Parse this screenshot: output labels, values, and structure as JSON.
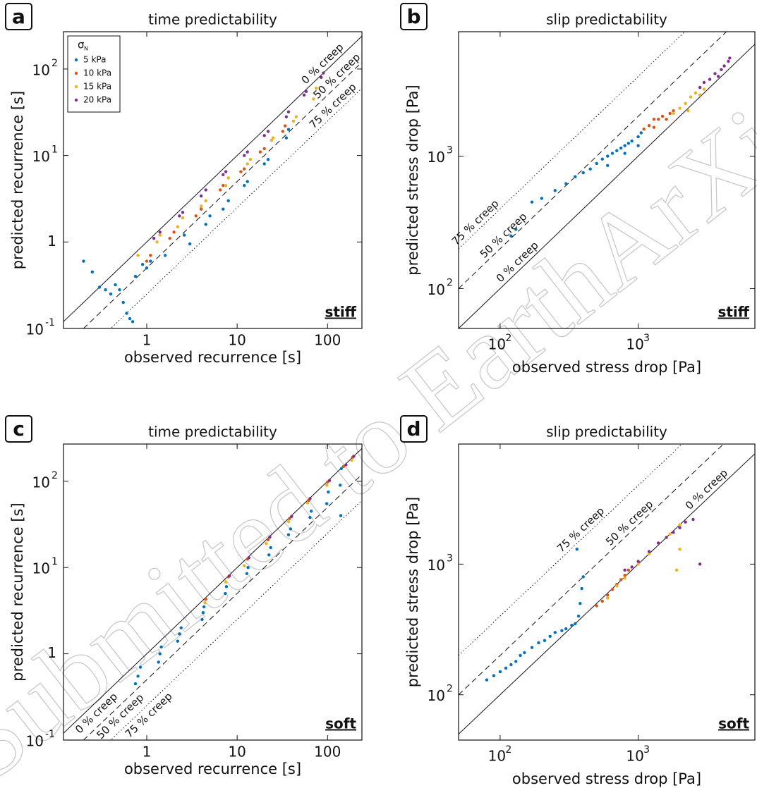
{
  "watermark": "Submitted to EarthArXiv",
  "chart_data": [
    {
      "type": "scatter",
      "panel_label": "a",
      "title": "time predictability",
      "x_label": "observed recurrence [s]",
      "y_label": "predicted recurrence [s]",
      "condition": "stiff",
      "log_x": true,
      "log_y": true,
      "xlim": [
        0.12,
        240
      ],
      "ylim": [
        0.1,
        270
      ],
      "xticks": [
        1,
        10,
        100
      ],
      "yticks": [
        {
          "value": 0.1,
          "label": "10",
          "exp": "-1"
        },
        1,
        {
          "value": 10,
          "label": "10",
          "exp": "1"
        },
        {
          "value": 100,
          "label": "10",
          "exp": "2"
        }
      ],
      "legend": "upper left",
      "legend_title": "σ",
      "legend_title_sub": "N",
      "creep_lines": [
        {
          "label": "0 % creep",
          "factor": 1,
          "style": "solid"
        },
        {
          "label": "50 % creep",
          "factor": 0.5,
          "style": "dashed"
        },
        {
          "label": "75 % creep",
          "factor": 0.25,
          "style": "dotted"
        }
      ],
      "series": [
        {
          "name": "5 kPa",
          "color": "#0072bd",
          "x": [
            0.2,
            0.25,
            0.3,
            0.35,
            0.4,
            0.45,
            0.5,
            0.55,
            0.6,
            0.65,
            0.7,
            0.75,
            0.9,
            1.0,
            1.1,
            1.6,
            2.6,
            3.0,
            4.5,
            5,
            7,
            8,
            12,
            13,
            20,
            22,
            35,
            37
          ],
          "y": [
            0.6,
            0.45,
            0.3,
            0.28,
            0.25,
            0.32,
            0.28,
            0.2,
            0.15,
            0.13,
            0.12,
            0.4,
            0.55,
            0.5,
            0.6,
            0.7,
            1.2,
            0.95,
            1.6,
            2.0,
            2.4,
            3,
            4.5,
            5,
            8,
            9,
            16,
            20
          ]
        },
        {
          "name": "10 kPa",
          "color": "#d95319",
          "x": [
            1.0,
            1.1,
            1.8,
            2.0,
            3.5,
            4,
            6.5,
            7,
            11,
            12,
            18,
            20,
            32,
            34
          ],
          "y": [
            0.6,
            0.7,
            1.1,
            1.3,
            2.0,
            2.4,
            4,
            4.5,
            6.5,
            7,
            11,
            12,
            19,
            22
          ]
        },
        {
          "name": "15 kPa",
          "color": "#edb120",
          "x": [
            0.8,
            1.3,
            1.4,
            2.2,
            2.5,
            4,
            4.5,
            7.5,
            8,
            13,
            14,
            24,
            25,
            42,
            45,
            70,
            75
          ],
          "y": [
            0.7,
            1.0,
            1.2,
            1.5,
            1.9,
            2.6,
            3,
            4.5,
            5.5,
            8,
            9,
            15,
            16,
            25,
            28,
            45,
            60
          ]
        },
        {
          "name": "20 kPa",
          "color": "#7e2f8e",
          "x": [
            1.2,
            1.4,
            2.3,
            2.5,
            4,
            4.5,
            7,
            7.5,
            12,
            13,
            20,
            22,
            35,
            37,
            55,
            58,
            85,
            90
          ],
          "y": [
            1.1,
            1.3,
            2,
            2.2,
            3.4,
            4,
            6,
            6.5,
            10,
            11,
            17,
            19,
            28,
            32,
            50,
            55,
            80,
            90
          ]
        }
      ]
    },
    {
      "type": "scatter",
      "panel_label": "b",
      "title": "slip predictability",
      "x_label": "observed stress drop [Pa]",
      "y_label": "predicted stress drop [Pa]",
      "condition": "stiff",
      "log_x": true,
      "log_y": true,
      "xlim": [
        50,
        7000
      ],
      "ylim": [
        50,
        8700
      ],
      "xticks": [
        {
          "value": 100,
          "label": "10",
          "exp": "2"
        },
        {
          "value": 1000,
          "label": "10",
          "exp": "3"
        }
      ],
      "yticks": [
        {
          "value": 100,
          "label": "10",
          "exp": "2"
        },
        {
          "value": 1000,
          "label": "10",
          "exp": "3"
        }
      ],
      "creep_lines": [
        {
          "label": "0 % creep",
          "factor": 1,
          "style": "solid"
        },
        {
          "label": "50 % creep",
          "factor": 2,
          "style": "dashed"
        },
        {
          "label": "75 % creep",
          "factor": 4,
          "style": "dotted"
        }
      ],
      "series": [
        {
          "color": "#0072bd",
          "x": [
            120,
            130,
            170,
            200,
            250,
            300,
            350,
            400,
            450,
            500,
            550,
            600,
            650,
            700,
            750,
            800,
            850,
            900,
            1000,
            1050,
            600,
            800,
            1000
          ],
          "y": [
            250,
            280,
            450,
            480,
            550,
            620,
            700,
            750,
            800,
            880,
            950,
            1000,
            1050,
            1100,
            1150,
            1200,
            1250,
            1300,
            1400,
            1500,
            850,
            1050,
            1200
          ]
        },
        {
          "color": "#d95319",
          "x": [
            1100,
            1200,
            1300,
            1400,
            1500,
            1600,
            1700,
            1800,
            1300
          ],
          "y": [
            1600,
            1700,
            1650,
            1900,
            2000,
            1900,
            2100,
            2200,
            1900
          ]
        },
        {
          "color": "#edb120",
          "x": [
            1800,
            2000,
            2200,
            2400,
            2600,
            2800,
            3000,
            2300
          ],
          "y": [
            2100,
            2300,
            2500,
            2800,
            3000,
            2900,
            3200,
            2200
          ]
        },
        {
          "color": "#7e2f8e",
          "x": [
            2800,
            3000,
            3300,
            3600,
            4000,
            4200,
            4500,
            4600,
            3800
          ],
          "y": [
            3300,
            3600,
            3800,
            4200,
            4500,
            4800,
            5200,
            5500,
            4000
          ]
        }
      ]
    },
    {
      "type": "scatter",
      "panel_label": "c",
      "title": "time predictability",
      "x_label": "observed recurrence [s]",
      "y_label": "predicted recurrence [s]",
      "condition": "soft",
      "log_x": true,
      "log_y": true,
      "xlim": [
        0.12,
        240
      ],
      "ylim": [
        0.1,
        270
      ],
      "xticks": [
        1,
        10,
        100
      ],
      "yticks": [
        {
          "value": 0.1,
          "label": "10",
          "exp": "-1"
        },
        1,
        {
          "value": 10,
          "label": "10",
          "exp": "1"
        },
        {
          "value": 100,
          "label": "10",
          "exp": "2"
        }
      ],
      "creep_lines": [
        {
          "label": "0 % creep",
          "factor": 1,
          "style": "solid"
        },
        {
          "label": "50 % creep",
          "factor": 0.5,
          "style": "dashed"
        },
        {
          "label": "75 % creep",
          "factor": 0.25,
          "style": "dotted"
        }
      ],
      "series": [
        {
          "color": "#0072bd",
          "x": [
            0.75,
            0.8,
            0.85,
            1.35,
            1.4,
            1.45,
            2.2,
            2.3,
            2.4,
            4.1,
            4.2,
            4.3,
            7.4,
            7.6,
            12.8,
            13.2,
            22.5,
            23.5,
            37,
            39,
            64,
            66,
            98,
            102,
            138,
            142,
            140
          ],
          "y": [
            0.45,
            0.55,
            0.7,
            0.8,
            1.0,
            1.2,
            1.4,
            1.7,
            2.0,
            2.5,
            3.0,
            3.5,
            5,
            6,
            8.5,
            10,
            14,
            17,
            24,
            28,
            38,
            45,
            55,
            75,
            90,
            140,
            40
          ]
        },
        {
          "color": "#d95319",
          "x": [
            4.5,
            8,
            13,
            22,
            38,
            62,
            100,
            150,
            190
          ],
          "y": [
            4.3,
            7.8,
            12.5,
            21,
            37,
            60,
            98,
            148,
            190
          ]
        },
        {
          "color": "#edb120",
          "x": [
            4.4,
            7.5,
            12,
            21,
            37,
            60,
            98,
            185
          ],
          "y": [
            3.9,
            6.8,
            10.5,
            19,
            34,
            56,
            90,
            175
          ]
        },
        {
          "color": "#7e2f8e",
          "x": [
            8.2,
            13.5,
            23,
            40,
            64,
            105,
            160,
            195
          ],
          "y": [
            8,
            13,
            22.5,
            39,
            63,
            102,
            155,
            195
          ]
        }
      ]
    },
    {
      "type": "scatter",
      "panel_label": "d",
      "title": "slip predictability",
      "x_label": "observed stress drop [Pa]",
      "y_label": "predicted stress drop [Pa]",
      "condition": "soft",
      "log_x": true,
      "log_y": true,
      "xlim": [
        50,
        7000
      ],
      "ylim": [
        45,
        8300
      ],
      "xticks": [
        {
          "value": 100,
          "label": "10",
          "exp": "2"
        },
        {
          "value": 1000,
          "label": "10",
          "exp": "3"
        }
      ],
      "yticks": [
        {
          "value": 100,
          "label": "10",
          "exp": "2"
        },
        {
          "value": 1000,
          "label": "10",
          "exp": "3"
        }
      ],
      "creep_lines": [
        {
          "label": "0 % creep",
          "factor": 1,
          "style": "solid"
        },
        {
          "label": "50 % creep",
          "factor": 2,
          "style": "dashed"
        },
        {
          "label": "75 % creep",
          "factor": 4,
          "style": "dotted"
        }
      ],
      "series": [
        {
          "color": "#0072bd",
          "x": [
            80,
            90,
            100,
            110,
            120,
            130,
            140,
            150,
            170,
            190,
            210,
            230,
            250,
            280,
            300,
            330,
            350,
            370,
            380,
            390,
            400,
            360
          ],
          "y": [
            130,
            140,
            150,
            160,
            170,
            180,
            200,
            210,
            230,
            250,
            260,
            280,
            300,
            310,
            320,
            340,
            350,
            400,
            500,
            650,
            800,
            1300
          ]
        },
        {
          "color": "#d95319",
          "x": [
            500,
            550,
            600,
            650,
            700,
            750,
            800,
            850
          ],
          "y": [
            480,
            520,
            580,
            640,
            700,
            760,
            820,
            900
          ]
        },
        {
          "color": "#edb120",
          "x": [
            600,
            700,
            800,
            1000,
            1200,
            1400,
            1700,
            2000,
            1900,
            2000
          ],
          "y": [
            550,
            680,
            780,
            1000,
            1200,
            1450,
            1700,
            2000,
            900,
            1300
          ]
        },
        {
          "color": "#7e2f8e",
          "x": [
            800,
            900,
            1000,
            1200,
            1400,
            1600,
            1800,
            2000,
            2200,
            2500,
            2800
          ],
          "y": [
            900,
            950,
            1050,
            1250,
            1450,
            1600,
            1750,
            1900,
            2100,
            2200,
            1000
          ]
        }
      ]
    }
  ]
}
